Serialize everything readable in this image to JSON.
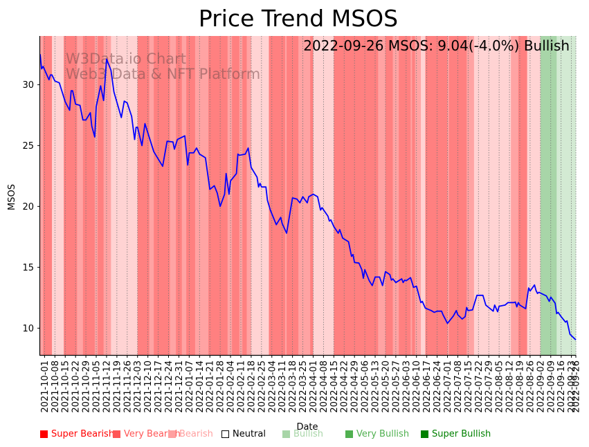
{
  "chart_data": {
    "type": "line",
    "title": "Price Trend MSOS",
    "xlabel": "Date",
    "ylabel": "MSOS",
    "ylim": [
      7.8,
      34.0
    ],
    "xlim": [
      "2021-09-28",
      "2022-09-26"
    ],
    "yticks": [
      10,
      15,
      20,
      25,
      30
    ],
    "xticks": [
      "2021-10-01",
      "2021-10-08",
      "2021-10-15",
      "2021-10-22",
      "2021-10-29",
      "2021-11-05",
      "2021-11-12",
      "2021-11-19",
      "2021-11-26",
      "2021-12-03",
      "2021-12-10",
      "2021-12-17",
      "2021-12-24",
      "2021-12-31",
      "2022-01-07",
      "2022-01-14",
      "2022-01-21",
      "2022-01-28",
      "2022-02-04",
      "2022-02-11",
      "2022-02-18",
      "2022-02-25",
      "2022-03-04",
      "2022-03-11",
      "2022-03-18",
      "2022-03-25",
      "2022-04-01",
      "2022-04-08",
      "2022-04-15",
      "2022-04-22",
      "2022-04-29",
      "2022-05-06",
      "2022-05-13",
      "2022-05-20",
      "2022-05-27",
      "2022-06-03",
      "2022-06-10",
      "2022-06-17",
      "2022-06-24",
      "2022-07-01",
      "2022-07-08",
      "2022-07-15",
      "2022-07-22",
      "2022-07-29",
      "2022-08-05",
      "2022-08-12",
      "2022-08-19",
      "2022-08-26",
      "2022-09-02",
      "2022-09-09",
      "2022-09-16",
      "2022-09-23",
      "2022-09-26"
    ],
    "grid": "x-dotted",
    "annotation": "2022-09-26 MSOS: 9.04(-4.0%) Bullish",
    "watermark": [
      "W3Data.io Chart",
      "Web3 Data & NFT Platform"
    ],
    "series": [
      {
        "name": "MSOS",
        "color": "#0000ff",
        "points": [
          [
            "2021-09-28",
            32.5
          ],
          [
            "2021-09-29",
            31.3
          ],
          [
            "2021-09-30",
            31.5
          ],
          [
            "2021-10-04",
            30.4
          ],
          [
            "2021-10-05",
            30.8
          ],
          [
            "2021-10-06",
            30.8
          ],
          [
            "2021-10-08",
            30.3
          ],
          [
            "2021-10-11",
            30.15
          ],
          [
            "2021-10-15",
            28.6
          ],
          [
            "2021-10-18",
            27.9
          ],
          [
            "2021-10-19",
            29.5
          ],
          [
            "2021-10-20",
            29.5
          ],
          [
            "2021-10-22",
            28.4
          ],
          [
            "2021-10-25",
            28.3
          ],
          [
            "2021-10-27",
            27.1
          ],
          [
            "2021-10-29",
            27.1
          ],
          [
            "2021-11-01",
            27.7
          ],
          [
            "2021-11-02",
            26.6
          ],
          [
            "2021-11-04",
            25.7
          ],
          [
            "2021-11-05",
            28.2
          ],
          [
            "2021-11-08",
            29.9
          ],
          [
            "2021-11-10",
            28.7
          ],
          [
            "2021-11-12",
            32.1
          ],
          [
            "2021-11-15",
            31.2
          ],
          [
            "2021-11-17",
            29.4
          ],
          [
            "2021-11-22",
            27.3
          ],
          [
            "2021-11-24",
            28.65
          ],
          [
            "2021-11-26",
            28.5
          ],
          [
            "2021-11-29",
            27.4
          ],
          [
            "2021-12-01",
            25.5
          ],
          [
            "2021-12-02",
            26.5
          ],
          [
            "2021-12-03",
            26.5
          ],
          [
            "2021-12-06",
            25.0
          ],
          [
            "2021-12-08",
            26.8
          ],
          [
            "2021-12-14",
            24.5
          ],
          [
            "2021-12-16",
            24.1
          ],
          [
            "2021-12-20",
            23.3
          ],
          [
            "2021-12-23",
            25.35
          ],
          [
            "2021-12-27",
            25.3
          ],
          [
            "2021-12-28",
            24.7
          ],
          [
            "2021-12-30",
            25.5
          ],
          [
            "2022-01-04",
            25.8
          ],
          [
            "2022-01-06",
            23.4
          ],
          [
            "2022-01-07",
            24.4
          ],
          [
            "2022-01-10",
            24.4
          ],
          [
            "2022-01-12",
            24.8
          ],
          [
            "2022-01-14",
            24.3
          ],
          [
            "2022-01-18",
            24.0
          ],
          [
            "2022-01-21",
            21.4
          ],
          [
            "2022-01-24",
            21.7
          ],
          [
            "2022-01-26",
            21.1
          ],
          [
            "2022-01-28",
            20.0
          ],
          [
            "2022-01-31",
            21.0
          ],
          [
            "2022-02-01",
            22.7
          ],
          [
            "2022-02-03",
            21.0
          ],
          [
            "2022-02-04",
            22.1
          ],
          [
            "2022-02-08",
            22.7
          ],
          [
            "2022-02-09",
            24.3
          ],
          [
            "2022-02-10",
            24.2
          ],
          [
            "2022-02-14",
            24.3
          ],
          [
            "2022-02-16",
            24.8
          ],
          [
            "2022-02-18",
            23.2
          ],
          [
            "2022-02-22",
            22.4
          ],
          [
            "2022-02-23",
            21.6
          ],
          [
            "2022-02-24",
            21.9
          ],
          [
            "2022-02-25",
            21.6
          ],
          [
            "2022-02-28",
            21.6
          ],
          [
            "2022-03-01",
            20.5
          ],
          [
            "2022-03-03",
            19.7
          ],
          [
            "2022-03-07",
            18.5
          ],
          [
            "2022-03-10",
            19.1
          ],
          [
            "2022-03-11",
            18.6
          ],
          [
            "2022-03-14",
            17.8
          ],
          [
            "2022-03-18",
            20.7
          ],
          [
            "2022-03-21",
            20.6
          ],
          [
            "2022-03-23",
            20.3
          ],
          [
            "2022-03-25",
            20.8
          ],
          [
            "2022-03-28",
            20.3
          ],
          [
            "2022-03-29",
            20.8
          ],
          [
            "2022-04-01",
            21.0
          ],
          [
            "2022-04-04",
            20.8
          ],
          [
            "2022-04-06",
            19.7
          ],
          [
            "2022-04-07",
            19.9
          ],
          [
            "2022-04-11",
            19.2
          ],
          [
            "2022-04-12",
            18.8
          ],
          [
            "2022-04-13",
            18.9
          ],
          [
            "2022-04-15",
            18.35
          ],
          [
            "2022-04-18",
            17.8
          ],
          [
            "2022-04-19",
            18.1
          ],
          [
            "2022-04-21",
            17.4
          ],
          [
            "2022-04-25",
            17.1
          ],
          [
            "2022-04-27",
            15.9
          ],
          [
            "2022-04-28",
            16.05
          ],
          [
            "2022-04-29",
            15.4
          ],
          [
            "2022-05-02",
            15.35
          ],
          [
            "2022-05-04",
            14.8
          ],
          [
            "2022-05-05",
            14.1
          ],
          [
            "2022-05-06",
            14.8
          ],
          [
            "2022-05-09",
            13.9
          ],
          [
            "2022-05-11",
            13.5
          ],
          [
            "2022-05-13",
            14.2
          ],
          [
            "2022-05-16",
            14.2
          ],
          [
            "2022-05-18",
            13.5
          ],
          [
            "2022-05-20",
            14.65
          ],
          [
            "2022-05-23",
            14.4
          ],
          [
            "2022-05-24",
            13.95
          ],
          [
            "2022-05-25",
            14.05
          ],
          [
            "2022-05-27",
            13.75
          ],
          [
            "2022-05-31",
            14.05
          ],
          [
            "2022-06-01",
            13.75
          ],
          [
            "2022-06-02",
            13.95
          ],
          [
            "2022-06-03",
            13.9
          ],
          [
            "2022-06-06",
            14.15
          ],
          [
            "2022-06-08",
            13.35
          ],
          [
            "2022-06-10",
            13.45
          ],
          [
            "2022-06-13",
            12.1
          ],
          [
            "2022-06-14",
            12.2
          ],
          [
            "2022-06-16",
            11.65
          ],
          [
            "2022-06-20",
            11.45
          ],
          [
            "2022-06-22",
            11.3
          ],
          [
            "2022-06-24",
            11.4
          ],
          [
            "2022-06-27",
            11.4
          ],
          [
            "2022-06-28",
            11.1
          ],
          [
            "2022-07-01",
            10.4
          ],
          [
            "2022-07-05",
            11.0
          ],
          [
            "2022-07-07",
            11.45
          ],
          [
            "2022-07-08",
            11.1
          ],
          [
            "2022-07-11",
            10.75
          ],
          [
            "2022-07-13",
            10.95
          ],
          [
            "2022-07-14",
            11.7
          ],
          [
            "2022-07-15",
            11.45
          ],
          [
            "2022-07-18",
            11.5
          ],
          [
            "2022-07-21",
            12.7
          ],
          [
            "2022-07-25",
            12.7
          ],
          [
            "2022-07-27",
            11.9
          ],
          [
            "2022-07-29",
            11.7
          ],
          [
            "2022-08-01",
            11.4
          ],
          [
            "2022-08-02",
            11.9
          ],
          [
            "2022-08-04",
            11.35
          ],
          [
            "2022-08-05",
            11.8
          ],
          [
            "2022-08-09",
            11.9
          ],
          [
            "2022-08-11",
            12.1
          ],
          [
            "2022-08-15",
            12.1
          ],
          [
            "2022-08-16",
            12.15
          ],
          [
            "2022-08-17",
            11.75
          ],
          [
            "2022-08-18",
            12.1
          ],
          [
            "2022-08-19",
            11.9
          ],
          [
            "2022-08-23",
            11.6
          ],
          [
            "2022-08-25",
            13.3
          ],
          [
            "2022-08-26",
            13.05
          ],
          [
            "2022-08-29",
            13.55
          ],
          [
            "2022-08-30",
            13.1
          ],
          [
            "2022-08-31",
            12.85
          ],
          [
            "2022-09-01",
            12.95
          ],
          [
            "2022-09-06",
            12.65
          ],
          [
            "2022-09-08",
            12.2
          ],
          [
            "2022-09-09",
            12.55
          ],
          [
            "2022-09-12",
            12.05
          ],
          [
            "2022-09-13",
            11.2
          ],
          [
            "2022-09-14",
            11.3
          ],
          [
            "2022-09-16",
            10.95
          ],
          [
            "2022-09-19",
            10.5
          ],
          [
            "2022-09-20",
            10.6
          ],
          [
            "2022-09-22",
            9.5
          ],
          [
            "2022-09-26",
            9.04
          ]
        ]
      }
    ],
    "sentiment_bands": [
      {
        "start": "2021-09-28",
        "end": "2021-09-30",
        "type": "very_bearish"
      },
      {
        "start": "2021-09-30",
        "end": "2021-10-06",
        "type": "super_bearish"
      },
      {
        "start": "2021-10-06",
        "end": "2021-10-14",
        "type": "bearish"
      },
      {
        "start": "2021-10-14",
        "end": "2021-10-23",
        "type": "super_bearish"
      },
      {
        "start": "2021-10-23",
        "end": "2021-10-27",
        "type": "very_bearish"
      },
      {
        "start": "2021-10-27",
        "end": "2021-11-04",
        "type": "super_bearish"
      },
      {
        "start": "2021-11-04",
        "end": "2021-11-06",
        "type": "very_bearish"
      },
      {
        "start": "2021-11-06",
        "end": "2021-11-10",
        "type": "super_bearish"
      },
      {
        "start": "2021-11-10",
        "end": "2021-11-15",
        "type": "very_bearish"
      },
      {
        "start": "2021-11-15",
        "end": "2021-12-03",
        "type": "bearish"
      },
      {
        "start": "2021-12-03",
        "end": "2021-12-11",
        "type": "super_bearish"
      },
      {
        "start": "2021-12-11",
        "end": "2021-12-14",
        "type": "very_bearish"
      },
      {
        "start": "2021-12-14",
        "end": "2021-12-25",
        "type": "super_bearish"
      },
      {
        "start": "2021-12-25",
        "end": "2021-12-29",
        "type": "very_bearish"
      },
      {
        "start": "2021-12-29",
        "end": "2022-01-02",
        "type": "super_bearish"
      },
      {
        "start": "2022-01-02",
        "end": "2022-01-05",
        "type": "very_bearish"
      },
      {
        "start": "2022-01-05",
        "end": "2022-01-11",
        "type": "super_bearish"
      },
      {
        "start": "2022-01-11",
        "end": "2022-01-20",
        "type": "very_bearish"
      },
      {
        "start": "2022-01-20",
        "end": "2022-02-02",
        "type": "super_bearish"
      },
      {
        "start": "2022-02-02",
        "end": "2022-02-05",
        "type": "very_bearish"
      },
      {
        "start": "2022-02-05",
        "end": "2022-02-10",
        "type": "super_bearish"
      },
      {
        "start": "2022-02-10",
        "end": "2022-02-12",
        "type": "very_bearish"
      },
      {
        "start": "2022-02-12",
        "end": "2022-02-15",
        "type": "super_bearish"
      },
      {
        "start": "2022-02-15",
        "end": "2022-02-18",
        "type": "very_bearish"
      },
      {
        "start": "2022-02-18",
        "end": "2022-03-02",
        "type": "bearish"
      },
      {
        "start": "2022-03-02",
        "end": "2022-03-13",
        "type": "super_bearish"
      },
      {
        "start": "2022-03-13",
        "end": "2022-03-14",
        "type": "very_bearish"
      },
      {
        "start": "2022-03-14",
        "end": "2022-03-22",
        "type": "super_bearish"
      },
      {
        "start": "2022-03-22",
        "end": "2022-03-30",
        "type": "very_bearish"
      },
      {
        "start": "2022-03-30",
        "end": "2022-04-01",
        "type": "super_bearish"
      },
      {
        "start": "2022-04-01",
        "end": "2022-04-15",
        "type": "bearish"
      },
      {
        "start": "2022-04-15",
        "end": "2022-05-15",
        "type": "super_bearish"
      },
      {
        "start": "2022-05-15",
        "end": "2022-05-20",
        "type": "very_bearish"
      },
      {
        "start": "2022-05-20",
        "end": "2022-05-25",
        "type": "super_bearish"
      },
      {
        "start": "2022-05-25",
        "end": "2022-05-29",
        "type": "very_bearish"
      },
      {
        "start": "2022-05-29",
        "end": "2022-06-06",
        "type": "super_bearish"
      },
      {
        "start": "2022-06-06",
        "end": "2022-06-07",
        "type": "very_bearish"
      },
      {
        "start": "2022-06-07",
        "end": "2022-06-09",
        "type": "super_bearish"
      },
      {
        "start": "2022-06-09",
        "end": "2022-06-13",
        "type": "very_bearish"
      },
      {
        "start": "2022-06-13",
        "end": "2022-06-16",
        "type": "bearish"
      },
      {
        "start": "2022-06-16",
        "end": "2022-07-01",
        "type": "super_bearish"
      },
      {
        "start": "2022-07-01",
        "end": "2022-07-02",
        "type": "very_bearish"
      },
      {
        "start": "2022-07-02",
        "end": "2022-07-14",
        "type": "super_bearish"
      },
      {
        "start": "2022-07-14",
        "end": "2022-07-19",
        "type": "very_bearish"
      },
      {
        "start": "2022-07-19",
        "end": "2022-08-13",
        "type": "bearish"
      },
      {
        "start": "2022-08-13",
        "end": "2022-08-18",
        "type": "very_bearish"
      },
      {
        "start": "2022-08-18",
        "end": "2022-08-24",
        "type": "super_bearish"
      },
      {
        "start": "2022-08-24",
        "end": "2022-09-02",
        "type": "bearish"
      },
      {
        "start": "2022-09-02",
        "end": "2022-09-13",
        "type": "very_bullish"
      },
      {
        "start": "2022-09-13",
        "end": "2022-09-26",
        "type": "bullish"
      }
    ],
    "band_colors": {
      "super_bearish": "#ff8080",
      "very_bearish": "#ffa3a3",
      "bearish": "#ffd3d3",
      "bullish": "#d3ead3",
      "very_bullish": "#a8d5a8"
    },
    "legend": [
      {
        "key": "super_bearish",
        "label": "Super Bearish",
        "color": "#ff0000",
        "text_color": "#ff0000"
      },
      {
        "key": "very_bearish",
        "label": "Very Bearish",
        "color": "#ff5555",
        "text_color": "#ff5555"
      },
      {
        "key": "bearish",
        "label": "Bearish",
        "color": "#ffa0a0",
        "text_color": "#ffa0a0"
      },
      {
        "key": "neutral",
        "label": "Neutral",
        "color": "#ffffff",
        "text_color": "#000000",
        "outline": true
      },
      {
        "key": "bullish",
        "label": "Bullish",
        "color": "#a8d5a8",
        "text_color": "#a8d5a8"
      },
      {
        "key": "very_bullish",
        "label": "Very Bullish",
        "color": "#50b050",
        "text_color": "#50b050"
      },
      {
        "key": "super_bullish",
        "label": "Super Bullish",
        "color": "#008000",
        "text_color": "#008000"
      }
    ],
    "legend_placement": "bottom"
  }
}
